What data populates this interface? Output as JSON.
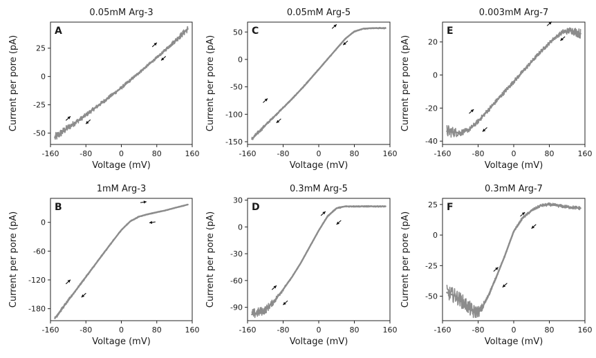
{
  "colors": {
    "trace": "#8c8c8c",
    "arrow": "#111111",
    "axis": "#222222"
  },
  "chart_data": [
    {
      "type": "line",
      "letter": "A",
      "title": "0.05mM Arg-3",
      "xlabel": "Voltage (mV)",
      "ylabel": "Current per pore (pA)",
      "xlim": [
        -160,
        160
      ],
      "ylim": [
        -60,
        48
      ],
      "xticks": [
        -160,
        -80,
        0,
        80,
        160
      ],
      "yticks": [
        25,
        0,
        -25,
        -50
      ],
      "noise": [
        [
          -150,
          4
        ],
        [
          -90,
          2
        ],
        [
          90,
          1.2
        ],
        [
          150,
          3
        ]
      ],
      "series": [
        {
          "x": [
            -150,
            -120,
            -90,
            -60,
            -30,
            0,
            30,
            60,
            90,
            120,
            150
          ],
          "y": [
            -54,
            -45,
            -37,
            -28,
            -19,
            -10,
            0,
            10,
            20,
            31,
            42
          ]
        }
      ],
      "arrows": [
        {
          "x": -120,
          "y": -37,
          "dir": "up"
        },
        {
          "x": -75,
          "y": -40,
          "dir": "down"
        },
        {
          "x": 75,
          "y": 28,
          "dir": "up"
        },
        {
          "x": 95,
          "y": 16,
          "dir": "down"
        }
      ]
    },
    {
      "type": "line",
      "letter": "C",
      "title": "0.05mM Arg-5",
      "xlabel": "Voltage (mV)",
      "ylabel": "Current per pore (pA)",
      "xlim": [
        -160,
        160
      ],
      "ylim": [
        -155,
        68
      ],
      "xticks": [
        -160,
        -80,
        0,
        80,
        160
      ],
      "yticks": [
        50,
        0,
        -50,
        -100,
        -150
      ],
      "noise": [
        [
          -150,
          4
        ],
        [
          -100,
          2
        ],
        [
          120,
          1
        ],
        [
          150,
          1.5
        ]
      ],
      "series": [
        {
          "x": [
            -150,
            -120,
            -90,
            -60,
            -30,
            0,
            30,
            60,
            80,
            100,
            120,
            150
          ],
          "y": [
            -145,
            -120,
            -96,
            -72,
            -46,
            -18,
            10,
            38,
            51,
            56,
            57,
            57
          ]
        }
      ],
      "arrows": [
        {
          "x": -120,
          "y": -75,
          "dir": "up"
        },
        {
          "x": -90,
          "y": -112,
          "dir": "down"
        },
        {
          "x": 35,
          "y": 60,
          "dir": "up"
        },
        {
          "x": 60,
          "y": 30,
          "dir": "down"
        }
      ]
    },
    {
      "type": "line",
      "letter": "E",
      "title": "0.003mM Arg-7",
      "xlabel": "Voltage (mV)",
      "ylabel": "Current per pore (pA)",
      "xlim": [
        -160,
        160
      ],
      "ylim": [
        -42,
        32
      ],
      "xticks": [
        -160,
        -80,
        0,
        80,
        160
      ],
      "yticks": [
        20,
        0,
        -20,
        -40
      ],
      "noise": [
        [
          -150,
          4
        ],
        [
          -110,
          1.5
        ],
        [
          100,
          1.2
        ],
        [
          150,
          3
        ]
      ],
      "series": [
        {
          "x": [
            -150,
            -120,
            -100,
            -80,
            -60,
            -30,
            0,
            30,
            60,
            90,
            110,
            130,
            150
          ],
          "y": [
            -34,
            -35,
            -33,
            -28,
            -22,
            -13,
            -4,
            5,
            14,
            22,
            26,
            27,
            25
          ]
        }
      ],
      "arrows": [
        {
          "x": -95,
          "y": -22,
          "dir": "up"
        },
        {
          "x": -65,
          "y": -33,
          "dir": "down"
        },
        {
          "x": 80,
          "y": 31,
          "dir": "up"
        },
        {
          "x": 110,
          "y": 22,
          "dir": "down"
        }
      ]
    },
    {
      "type": "line",
      "letter": "B",
      "title": "1mM Arg-3",
      "xlabel": "Voltage (mV)",
      "ylabel": "Current per pore (pA)",
      "xlim": [
        -160,
        160
      ],
      "ylim": [
        -205,
        50
      ],
      "xticks": [
        -160,
        -80,
        0,
        80,
        160
      ],
      "yticks": [
        0,
        -60,
        -120,
        -180
      ],
      "noise": [
        [
          -150,
          4
        ],
        [
          -100,
          2.5
        ],
        [
          80,
          1
        ],
        [
          150,
          1
        ]
      ],
      "series": [
        {
          "x": [
            -150,
            -120,
            -90,
            -60,
            -30,
            0,
            20,
            40,
            60,
            80,
            100,
            120,
            150
          ],
          "y": [
            -200,
            -163,
            -126,
            -89,
            -52,
            -16,
            2,
            12,
            17,
            21,
            25,
            30,
            37
          ]
        }
      ],
      "arrows": [
        {
          "x": -120,
          "y": -124,
          "dir": "up"
        },
        {
          "x": -85,
          "y": -152,
          "dir": "down"
        },
        {
          "x": 50,
          "y": 42,
          "dir": "right"
        },
        {
          "x": 70,
          "y": 0,
          "dir": "left"
        }
      ]
    },
    {
      "type": "line",
      "letter": "D",
      "title": "0.3mM Arg-5",
      "xlabel": "Voltage (mV)",
      "ylabel": "Current per pore (pA)",
      "xlim": [
        -160,
        160
      ],
      "ylim": [
        -105,
        32
      ],
      "xticks": [
        -160,
        -80,
        0,
        80,
        160
      ],
      "yticks": [
        30,
        0,
        -30,
        -60,
        -90
      ],
      "noise": [
        [
          -150,
          6
        ],
        [
          -110,
          4
        ],
        [
          -70,
          1
        ],
        [
          150,
          0.8
        ]
      ],
      "series": [
        {
          "x": [
            -150,
            -120,
            -100,
            -80,
            -60,
            -40,
            -20,
            0,
            20,
            40,
            60,
            80,
            100,
            150
          ],
          "y": [
            -98,
            -93,
            -83,
            -70,
            -56,
            -40,
            -22,
            -4,
            12,
            21,
            23,
            23,
            23,
            23
          ]
        }
      ],
      "arrows": [
        {
          "x": -100,
          "y": -68,
          "dir": "up"
        },
        {
          "x": -75,
          "y": -85,
          "dir": "down"
        },
        {
          "x": 10,
          "y": 15,
          "dir": "up"
        },
        {
          "x": 45,
          "y": 5,
          "dir": "down"
        }
      ]
    },
    {
      "type": "line",
      "letter": "F",
      "title": "0.3mM Arg-7",
      "xlabel": "Voltage (mV)",
      "ylabel": "Current per pore (pA)",
      "xlim": [
        -160,
        160
      ],
      "ylim": [
        -70,
        30
      ],
      "xticks": [
        -160,
        -80,
        0,
        80,
        160
      ],
      "yticks": [
        25,
        0,
        -25,
        -50
      ],
      "noise": [
        [
          -150,
          6
        ],
        [
          -90,
          6
        ],
        [
          -60,
          2
        ],
        [
          -30,
          1
        ],
        [
          150,
          1.5
        ]
      ],
      "series": [
        {
          "x": [
            -150,
            -130,
            -110,
            -90,
            -75,
            -60,
            -40,
            -20,
            0,
            20,
            40,
            60,
            80,
            100,
            120,
            150
          ],
          "y": [
            -47,
            -50,
            -56,
            -63,
            -62,
            -52,
            -35,
            -17,
            3,
            14,
            20,
            24,
            25,
            24,
            23,
            22
          ]
        }
      ],
      "arrows": [
        {
          "x": -40,
          "y": -28,
          "dir": "up"
        },
        {
          "x": -20,
          "y": -41,
          "dir": "down"
        },
        {
          "x": 20,
          "y": 17,
          "dir": "up"
        },
        {
          "x": 45,
          "y": 7,
          "dir": "down"
        }
      ]
    }
  ]
}
